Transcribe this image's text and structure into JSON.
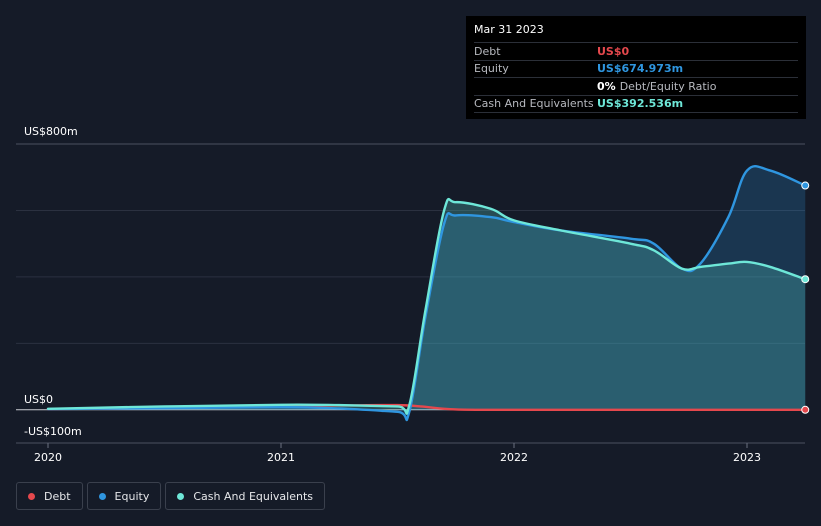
{
  "tooltip": {
    "date": "Mar 31 2023",
    "rows": {
      "debt": {
        "label": "Debt",
        "value": "US$0"
      },
      "equity": {
        "label": "Equity",
        "value": "US$674.973m"
      },
      "ratio": {
        "pct": "0%",
        "label": "Debt/Equity Ratio"
      },
      "cash": {
        "label": "Cash And Equivalents",
        "value": "US$392.536m"
      }
    }
  },
  "colors": {
    "debt": "#e5484d",
    "equity": "#2f96e0",
    "cash": "#6ee7d8",
    "grid": "#2b3140",
    "background": "#151b28"
  },
  "legend": [
    {
      "key": "debt",
      "label": "Debt"
    },
    {
      "key": "equity",
      "label": "Equity"
    },
    {
      "key": "cash",
      "label": "Cash And Equivalents"
    }
  ],
  "chart_data": {
    "type": "area",
    "title": "",
    "xlabel": "",
    "ylabel": "",
    "xlim": [
      2019.9,
      2023.25
    ],
    "ylim": [
      -100,
      800
    ],
    "y_tick_labels": [
      {
        "value": 800,
        "label": "US$800m"
      },
      {
        "value": 0,
        "label": "US$0"
      },
      {
        "value": -100,
        "label": "-US$100m"
      }
    ],
    "x_tick_labels": [
      {
        "value": 2020,
        "label": "2020"
      },
      {
        "value": 2021,
        "label": "2021"
      },
      {
        "value": 2022,
        "label": "2022"
      },
      {
        "value": 2023,
        "label": "2023"
      }
    ],
    "grid": true,
    "legend_position": "bottom-left",
    "series": [
      {
        "key": "debt",
        "name": "Debt",
        "x": [
          2020,
          2020.5,
          2021,
          2021.25,
          2021.5,
          2021.6,
          2021.75,
          2022,
          2022.5,
          2023,
          2023.25
        ],
        "y": [
          2,
          6,
          12,
          13,
          14,
          10,
          1,
          0,
          0,
          0,
          0
        ]
      },
      {
        "key": "equity",
        "name": "Equity",
        "x": [
          2020,
          2020.5,
          2021,
          2021.25,
          2021.5,
          2021.55,
          2021.62,
          2021.7,
          2021.75,
          2021.9,
          2022,
          2022.2,
          2022.5,
          2022.6,
          2022.72,
          2022.8,
          2022.92,
          2023,
          2023.1,
          2023.25
        ],
        "y": [
          2,
          5,
          8,
          4,
          -6,
          -8,
          280,
          560,
          585,
          580,
          565,
          540,
          515,
          500,
          425,
          440,
          580,
          720,
          720,
          675
        ]
      },
      {
        "key": "cash",
        "name": "Cash And Equivalents",
        "x": [
          2020,
          2020.5,
          2021,
          2021.25,
          2021.5,
          2021.55,
          2021.62,
          2021.7,
          2021.75,
          2021.9,
          2022,
          2022.2,
          2022.5,
          2022.6,
          2022.72,
          2022.8,
          2022.92,
          2023,
          2023.1,
          2023.25
        ],
        "y": [
          3,
          10,
          15,
          14,
          10,
          12,
          300,
          600,
          625,
          605,
          570,
          540,
          500,
          480,
          425,
          430,
          440,
          445,
          430,
          393
        ]
      }
    ]
  }
}
